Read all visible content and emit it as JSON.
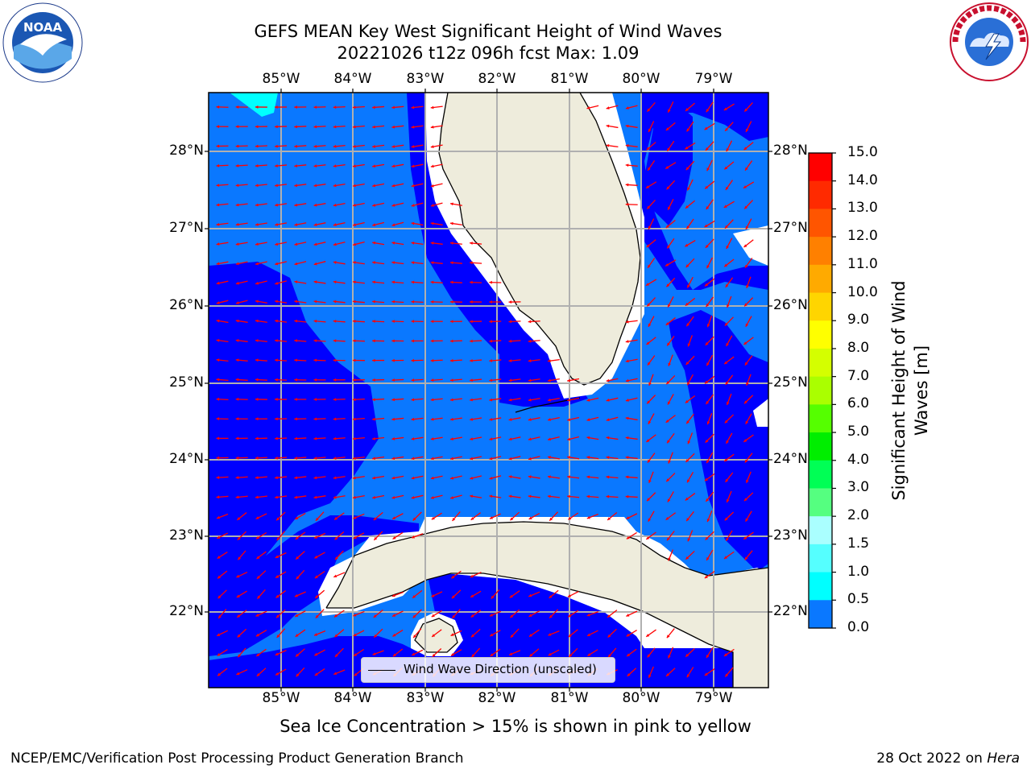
{
  "header": {
    "title_line1": "GEFS MEAN Key West Significant Height of Wind Waves",
    "title_line2": "20221026 t12z 096h fcst   Max: 1.09"
  },
  "logos": {
    "left": {
      "icon": "noaa-logo",
      "text": "NOAA",
      "ring_text": "NATIONAL OCEANIC AND ATMOSPHERIC ADMINISTRATION · U.S. DEPARTMENT OF COMMERCE"
    },
    "right": {
      "icon": "nws-logo",
      "ring_text": "NATIONAL WEATHER SERVICE"
    }
  },
  "map": {
    "lon_labels": [
      "85°W",
      "84°W",
      "83°W",
      "82°W",
      "81°W",
      "80°W",
      "79°W"
    ],
    "lat_labels": [
      "28°N",
      "27°N",
      "26°N",
      "25°N",
      "24°N",
      "23°N",
      "22°N"
    ],
    "legend_label": "Wind Wave Direction (unscaled)",
    "colors": {
      "ocean_0_05": "#0000ff",
      "ocean_05_10": "#0a78ff",
      "ocean_10_15": "#00ffff",
      "land": "#eeecdc",
      "no_data": "#ffffff",
      "arrows": "#ff0000",
      "grid": "#b0b0b0"
    }
  },
  "colorbar": {
    "label": "Significant Height of Wind Waves [m]",
    "ticks": [
      "15.0",
      "14.0",
      "13.0",
      "12.0",
      "11.0",
      "10.0",
      "9.0",
      "8.0",
      "7.0",
      "6.0",
      "5.0",
      "4.0",
      "3.0",
      "2.0",
      "1.5",
      "1.0",
      "0.5",
      "0.0"
    ],
    "colors_top_to_bottom": [
      "#ff0000",
      "#ff2a00",
      "#ff5500",
      "#ff8000",
      "#ffaa00",
      "#ffd500",
      "#ffff00",
      "#d4ff00",
      "#aaff00",
      "#55ff00",
      "#00ee00",
      "#00ff55",
      "#55ff80",
      "#aaffff",
      "#55ffff",
      "#00ffff",
      "#0a78ff",
      "#0000ff"
    ]
  },
  "notes": {
    "ice": "Sea Ice Concentration > 15% is shown in pink to yellow"
  },
  "footer": {
    "left": "NCEP/EMC/Verification Post Processing Product Generation Branch",
    "right_prefix": "28 Oct 2022 on ",
    "right_machine": "Hera"
  }
}
